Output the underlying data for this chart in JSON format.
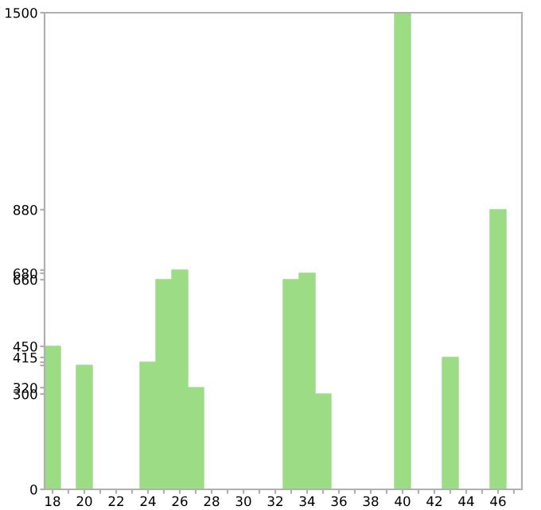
{
  "chart_data": {
    "type": "bar",
    "categories": [
      "18",
      null,
      "20",
      null,
      "22",
      null,
      "24",
      null,
      "26",
      null,
      "28",
      null,
      "30",
      null,
      "32",
      null,
      "34",
      null,
      "36",
      null,
      "38",
      null,
      "40",
      null,
      "42",
      null,
      "44",
      null,
      "46",
      null
    ],
    "values": [
      450,
      0,
      390,
      0,
      0,
      0,
      400,
      660,
      690,
      320,
      0,
      0,
      0,
      0,
      0,
      660,
      680,
      300,
      0,
      0,
      0,
      0,
      1500,
      0,
      0,
      415,
      0,
      0,
      880,
      0
    ],
    "color": "#9bdc85",
    "ylim": [
      0,
      1500
    ],
    "yticks": [
      0,
      300,
      320,
      {
        "value": 390,
        "label": null
      },
      {
        "value": 400,
        "label": null
      },
      415,
      450,
      660,
      680,
      {
        "value": 690,
        "label": null
      },
      880,
      1500
    ],
    "grid": false
  }
}
